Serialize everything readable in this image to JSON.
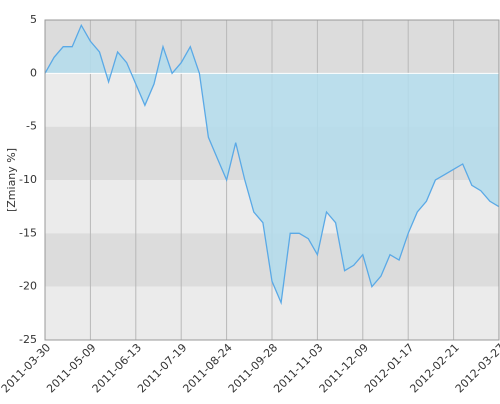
{
  "chart_data": {
    "type": "area",
    "ylabel": "[Zmiany %]",
    "categories": [
      "2011-03-30",
      null,
      null,
      null,
      null,
      "2011-05-09",
      null,
      null,
      null,
      null,
      "2011-06-13",
      null,
      null,
      null,
      null,
      "2011-07-19",
      null,
      null,
      null,
      null,
      "2011-08-24",
      null,
      null,
      null,
      null,
      "2011-09-28",
      null,
      null,
      null,
      null,
      "2011-11-03",
      null,
      null,
      null,
      null,
      "2011-12-09",
      null,
      null,
      null,
      null,
      "2012-01-17",
      null,
      null,
      null,
      null,
      "2012-02-21",
      null,
      null,
      null,
      null,
      "2012-03-27"
    ],
    "values": [
      0,
      1.5,
      2.5,
      2.5,
      4.5,
      3,
      2,
      -0.8,
      2,
      1,
      -1,
      -3,
      -1,
      2.5,
      0,
      1,
      2.5,
      0,
      -6,
      -8,
      -10,
      -6.5,
      -10,
      -13,
      -14,
      -19.5,
      -21.5,
      -15,
      -15,
      -15.5,
      -17,
      -13,
      -14,
      -18.5,
      -18,
      -17,
      -20,
      -19,
      -17,
      -17.5,
      -15,
      -13,
      -12,
      -10,
      -9.5,
      -9,
      -8.5,
      -10.5,
      -11,
      -12,
      -12.5
    ],
    "color": "#5aa9e6",
    "fill_color": "#b3dcec",
    "ylim": [
      -25,
      5
    ],
    "yticks": [
      5,
      0,
      -5,
      -10,
      -15,
      -20,
      -25
    ],
    "grid": true
  }
}
